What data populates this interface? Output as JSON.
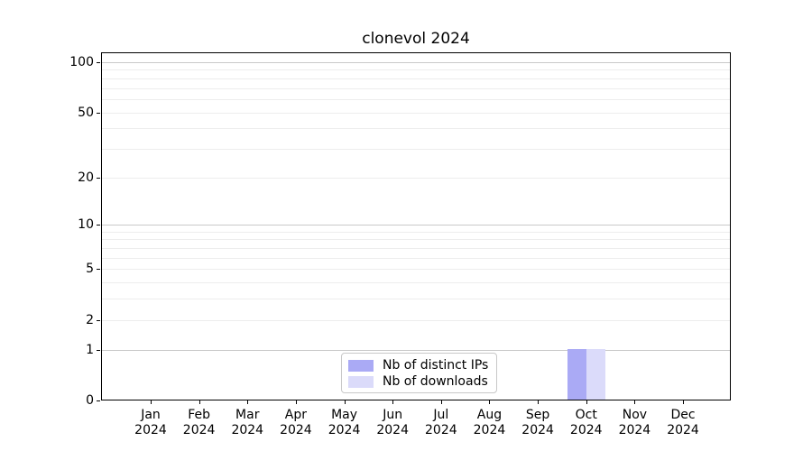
{
  "chart_data": {
    "type": "bar",
    "title": "clonevol 2024",
    "x_tick_labels": [
      [
        "Jan",
        "2024"
      ],
      [
        "Feb",
        "2024"
      ],
      [
        "Mar",
        "2024"
      ],
      [
        "Apr",
        "2024"
      ],
      [
        "May",
        "2024"
      ],
      [
        "Jun",
        "2024"
      ],
      [
        "Jul",
        "2024"
      ],
      [
        "Aug",
        "2024"
      ],
      [
        "Sep",
        "2024"
      ],
      [
        "Oct",
        "2024"
      ],
      [
        "Nov",
        "2024"
      ],
      [
        "Dec",
        "2024"
      ]
    ],
    "series": [
      {
        "name": "Nb of distinct IPs",
        "color": "#aaaaf5",
        "values": [
          0,
          0,
          0,
          0,
          0,
          0,
          0,
          0,
          0,
          1,
          0,
          0
        ]
      },
      {
        "name": "Nb of downloads",
        "color": "#dbdbfa",
        "values": [
          0,
          0,
          0,
          0,
          0,
          0,
          0,
          0,
          0,
          1,
          0,
          0
        ]
      }
    ],
    "y_ticks": [
      0,
      1,
      2,
      5,
      10,
      20,
      50,
      100
    ],
    "y_minor_gridlines": [
      2,
      3,
      4,
      5,
      6,
      7,
      8,
      9,
      20,
      30,
      40,
      50,
      60,
      70,
      80,
      90
    ],
    "y_major_gridlines": [
      1,
      10,
      100
    ],
    "y_scale": "log10(1+x)",
    "ylim": [
      0,
      115
    ],
    "xlabel": "",
    "ylabel": "",
    "grid": "horizontal",
    "legend_position": "bottom-center"
  }
}
